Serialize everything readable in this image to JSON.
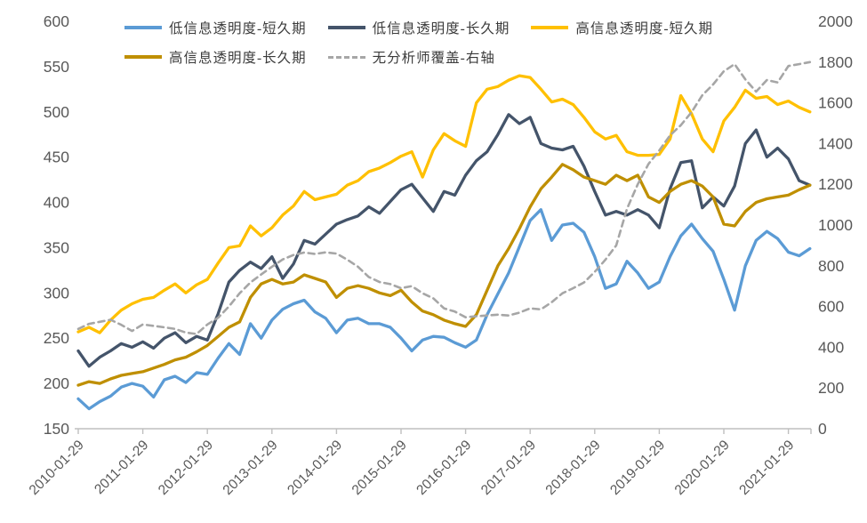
{
  "chart_data": {
    "type": "line",
    "title": "",
    "x_start": "2010-01",
    "x_step_months": 2,
    "x_tick_labels": [
      "2010-01-29",
      "2011-01-29",
      "2012-01-29",
      "2013-01-29",
      "2014-01-29",
      "2015-01-29",
      "2016-01-29",
      "2017-01-29",
      "2018-01-29",
      "2019-01-29",
      "2020-01-29",
      "2021-01-29"
    ],
    "left_axis": {
      "min": 150,
      "max": 600,
      "step": 50,
      "ticks": [
        "600",
        "550",
        "500",
        "450",
        "400",
        "350",
        "300",
        "250",
        "200",
        "150"
      ]
    },
    "right_axis": {
      "min": 0,
      "max": 2000,
      "step": 200,
      "ticks": [
        "2000",
        "1800",
        "1600",
        "1400",
        "1200",
        "1000",
        "800",
        "600",
        "400",
        "200",
        "0"
      ]
    },
    "grid": false,
    "legend_position": "top",
    "legend_rows": [
      [
        0,
        1,
        2
      ],
      [
        3,
        4
      ]
    ],
    "axis_color": "#BFBFBF",
    "tick_label_color": "#595959",
    "series": [
      {
        "name": "低信息透明度-短久期",
        "color": "#5B9BD5",
        "axis": "left",
        "dash": false,
        "values": [
          183,
          172,
          180,
          186,
          196,
          200,
          197,
          185,
          204,
          208,
          201,
          212,
          210,
          228,
          244,
          232,
          266,
          250,
          270,
          282,
          288,
          292,
          279,
          272,
          256,
          270,
          272,
          266,
          266,
          262,
          250,
          236,
          248,
          252,
          251,
          245,
          240,
          248,
          276,
          299,
          322,
          351,
          380,
          392,
          358,
          375,
          377,
          367,
          340,
          305,
          310,
          335,
          322,
          305,
          312,
          340,
          363,
          376,
          360,
          346,
          315,
          281,
          330,
          358,
          368,
          360,
          345,
          341,
          349
        ]
      },
      {
        "name": "低信息透明度-长久期",
        "color": "#44546A",
        "axis": "left",
        "dash": false,
        "values": [
          236,
          219,
          229,
          236,
          244,
          240,
          246,
          239,
          250,
          256,
          245,
          252,
          248,
          277,
          312,
          325,
          334,
          327,
          340,
          316,
          332,
          358,
          354,
          365,
          376,
          381,
          385,
          395,
          388,
          401,
          414,
          420,
          405,
          390,
          412,
          408,
          430,
          446,
          456,
          475,
          497,
          487,
          494,
          465,
          460,
          458,
          462,
          440,
          412,
          386,
          390,
          386,
          392,
          386,
          372,
          415,
          444,
          446,
          394,
          406,
          396,
          418,
          465,
          480,
          450,
          460,
          448,
          424,
          419
        ]
      },
      {
        "name": "高信息透明度-短久期",
        "color": "#FFC000",
        "axis": "left",
        "dash": false,
        "values": [
          257,
          262,
          256,
          270,
          281,
          288,
          293,
          295,
          303,
          310,
          300,
          309,
          315,
          333,
          350,
          352,
          374,
          363,
          372,
          386,
          396,
          412,
          403,
          406,
          409,
          419,
          424,
          434,
          438,
          444,
          451,
          456,
          428,
          458,
          476,
          468,
          462,
          510,
          525,
          528,
          535,
          540,
          538,
          525,
          511,
          514,
          508,
          494,
          478,
          470,
          474,
          456,
          452,
          452,
          453,
          470,
          518,
          498,
          470,
          456,
          490,
          505,
          524,
          515,
          517,
          508,
          512,
          505,
          500
        ]
      },
      {
        "name": "高信息透明度-长久期",
        "color": "#BF8F00",
        "axis": "left",
        "dash": false,
        "values": [
          198,
          202,
          200,
          205,
          209,
          211,
          213,
          217,
          221,
          226,
          229,
          235,
          242,
          252,
          262,
          268,
          295,
          310,
          315,
          310,
          312,
          320,
          316,
          312,
          295,
          305,
          308,
          305,
          300,
          297,
          303,
          290,
          280,
          276,
          270,
          266,
          263,
          276,
          303,
          330,
          349,
          371,
          395,
          415,
          428,
          442,
          436,
          428,
          424,
          420,
          430,
          424,
          430,
          406,
          400,
          412,
          420,
          424,
          418,
          406,
          376,
          374,
          390,
          400,
          404,
          406,
          408,
          414,
          419
        ]
      },
      {
        "name": "无分析师覆盖-右轴",
        "color": "#A6A6A6",
        "axis": "right",
        "dash": true,
        "values": [
          490,
          515,
          525,
          535,
          510,
          480,
          512,
          505,
          498,
          490,
          472,
          465,
          512,
          545,
          600,
          665,
          718,
          757,
          795,
          831,
          853,
          865,
          858,
          866,
          860,
          830,
          795,
          745,
          720,
          710,
          690,
          700,
          665,
          640,
          591,
          575,
          547,
          552,
          556,
          560,
          556,
          570,
          591,
          586,
          621,
          665,
          690,
          718,
          770,
          830,
          900,
          1080,
          1200,
          1300,
          1366,
          1440,
          1490,
          1554,
          1637,
          1690,
          1755,
          1790,
          1715,
          1655,
          1712,
          1700,
          1781,
          1790,
          1800
        ]
      }
    ]
  }
}
